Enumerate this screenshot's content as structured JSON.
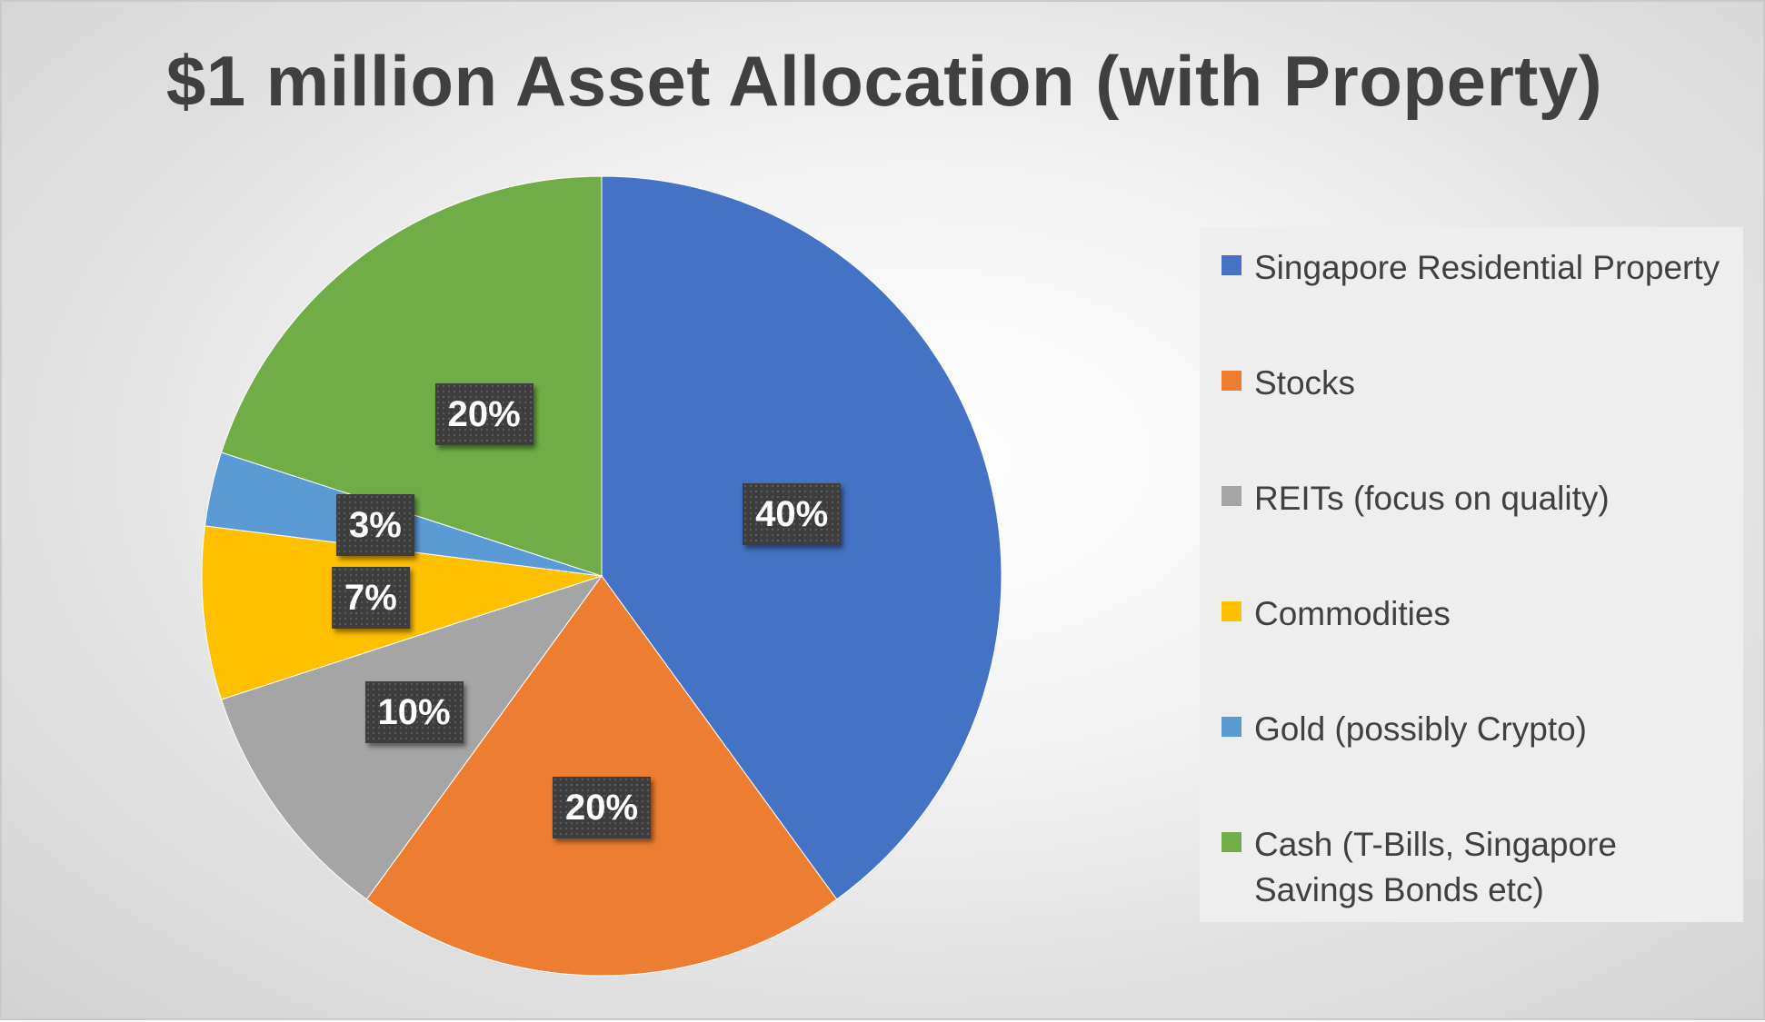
{
  "chart_data": {
    "type": "pie",
    "title": "$1 million Asset Allocation (with Property)",
    "legend_position": "right",
    "slices": [
      {
        "label": "Singapore Residential Property",
        "value": 40,
        "display": "40%",
        "color": "#4472C4"
      },
      {
        "label": "Stocks",
        "value": 20,
        "display": "20%",
        "color": "#ED7D31"
      },
      {
        "label": "REITs (focus on quality)",
        "value": 10,
        "display": "10%",
        "color": "#A5A5A5"
      },
      {
        "label": "Commodities",
        "value": 7,
        "display": "7%",
        "color": "#FFC000"
      },
      {
        "label": "Gold (possibly Crypto)",
        "value": 3,
        "display": "3%",
        "color": "#5B9BD5"
      },
      {
        "label": "Cash (T-Bills, Singapore Savings Bonds etc)",
        "value": 20,
        "display": "20%",
        "color": "#70AD47"
      }
    ]
  }
}
